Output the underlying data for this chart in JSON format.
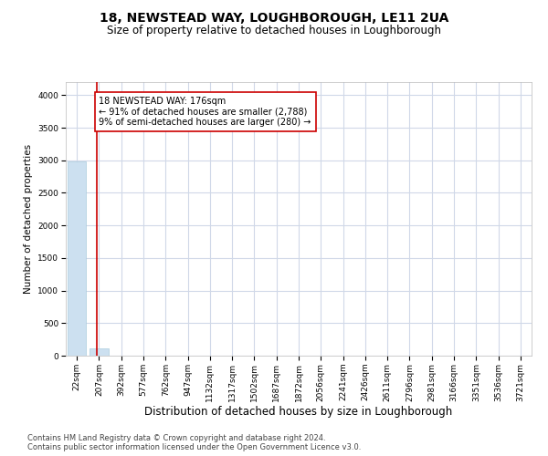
{
  "title": "18, NEWSTEAD WAY, LOUGHBOROUGH, LE11 2UA",
  "subtitle": "Size of property relative to detached houses in Loughborough",
  "xlabel": "Distribution of detached houses by size in Loughborough",
  "ylabel": "Number of detached properties",
  "footer_line1": "Contains HM Land Registry data © Crown copyright and database right 2024.",
  "footer_line2": "Contains public sector information licensed under the Open Government Licence v3.0.",
  "categories": [
    "22sqm",
    "207sqm",
    "392sqm",
    "577sqm",
    "762sqm",
    "947sqm",
    "1132sqm",
    "1317sqm",
    "1502sqm",
    "1687sqm",
    "1872sqm",
    "2056sqm",
    "2241sqm",
    "2426sqm",
    "2611sqm",
    "2796sqm",
    "2981sqm",
    "3166sqm",
    "3351sqm",
    "3536sqm",
    "3721sqm"
  ],
  "values": [
    2988,
    109,
    0,
    0,
    0,
    0,
    0,
    0,
    0,
    0,
    0,
    0,
    0,
    0,
    0,
    0,
    0,
    0,
    0,
    0,
    0
  ],
  "bar_color": "#cce0f0",
  "bar_edge_color": "#aaccdd",
  "grid_color": "#d0d8e8",
  "annotation_line1": "18 NEWSTEAD WAY: 176sqm",
  "annotation_line2": "← 91% of detached houses are smaller (2,788)",
  "annotation_line3": "9% of semi-detached houses are larger (280) →",
  "annotation_box_color": "#ffffff",
  "annotation_box_edge": "#cc0000",
  "property_line_x": 0.92,
  "property_line_color": "#cc0000",
  "ylim": [
    0,
    4200
  ],
  "yticks": [
    0,
    500,
    1000,
    1500,
    2000,
    2500,
    3000,
    3500,
    4000
  ],
  "title_fontsize": 10,
  "subtitle_fontsize": 8.5,
  "xlabel_fontsize": 8.5,
  "ylabel_fontsize": 7.5,
  "tick_fontsize": 6.5,
  "annotation_fontsize": 7,
  "footer_fontsize": 6,
  "bg_color": "#ffffff"
}
